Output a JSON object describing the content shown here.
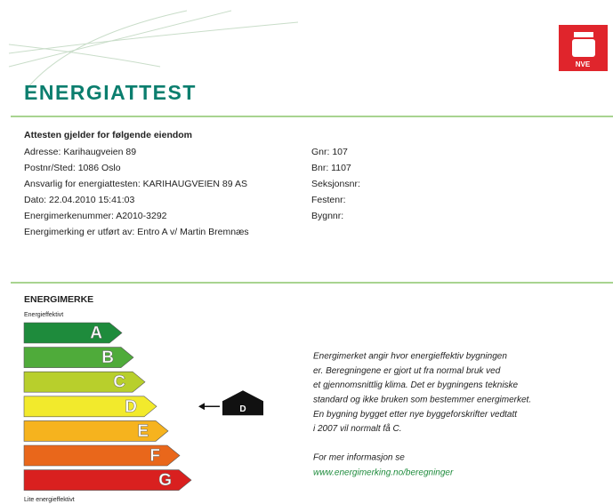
{
  "header": {
    "title": "ENERGIATTEST",
    "logo_text": "NVE"
  },
  "property": {
    "heading": "Attesten gjelder for følgende eiendom",
    "left": [
      "Adresse: Karihaugveien 89",
      "Postnr/Sted: 1086 Oslo",
      "Ansvarlig for energiattesten: KARIHAUGVEIEN 89 AS",
      "Dato: 22.04.2010 15:41:03",
      "Energimerkenummer: A2010-3292",
      "Energimerking er utført av: Entro A v/ Martin Bremnæs"
    ],
    "right": [
      "Gnr: 107",
      "Bnr: 1107",
      "Seksjonsnr:",
      "Festenr:",
      "Bygnnr:"
    ]
  },
  "energimerke": {
    "heading": "ENERGIMERKE",
    "top_label": "Energieffektivt",
    "bottom_label": "Lite energieffektivt",
    "grades": [
      {
        "label": "A",
        "color": "#1e8b3c"
      },
      {
        "label": "B",
        "color": "#4fab3a"
      },
      {
        "label": "C",
        "color": "#b8cf2c"
      },
      {
        "label": "D",
        "color": "#f2ea2c"
      },
      {
        "label": "E",
        "color": "#f6b31e"
      },
      {
        "label": "F",
        "color": "#e9671b"
      },
      {
        "label": "G",
        "color": "#d9201f"
      }
    ],
    "current": "D",
    "description": [
      "Energimerket angir hvor energieffektiv bygningen",
      "er. Beregningene er gjort ut fra normal bruk ved",
      "et gjennomsnittlig klima. Det er bygningens tekniske",
      "standard og ikke bruken som bestemmer energimerket.",
      "En bygning bygget etter nye byggeforskrifter vedtatt",
      "i 2007 vil normalt få C."
    ],
    "more_info": "For mer informasjon se",
    "link": "www.energimerking.no/beregninger"
  }
}
